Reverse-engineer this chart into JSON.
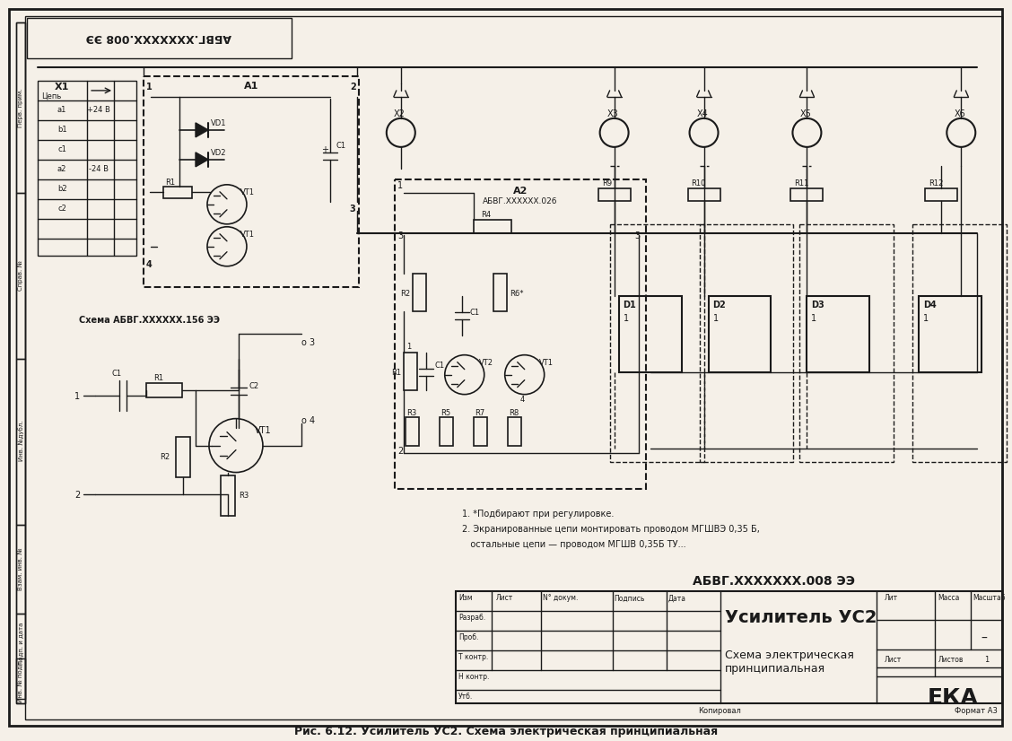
{
  "title": "АБВГ.XXXXXXX.008 ЭЭ",
  "caption": "Рис. 6.12. Усилитель УС2. Схема электрическая принципиальная",
  "title_block_title": "АБВГ.XXXXXXX.008 ЭЭ",
  "doc_title1": "Усилитель УС2",
  "doc_title2": "Схема электрическая",
  "doc_title3": "принципиальная",
  "org_code": "ЕКА",
  "format": "Формат А3",
  "background": "#f5f0e8",
  "line_color": "#1a1a1a",
  "notes": [
    "1. *Подбирают при регулировке.",
    "2. Экранированные цепи монтировать проводом МГШВЭ 0,35 Б,",
    "   остальные цепи — проводом МГШВ 0,35Б ТУ..."
  ]
}
